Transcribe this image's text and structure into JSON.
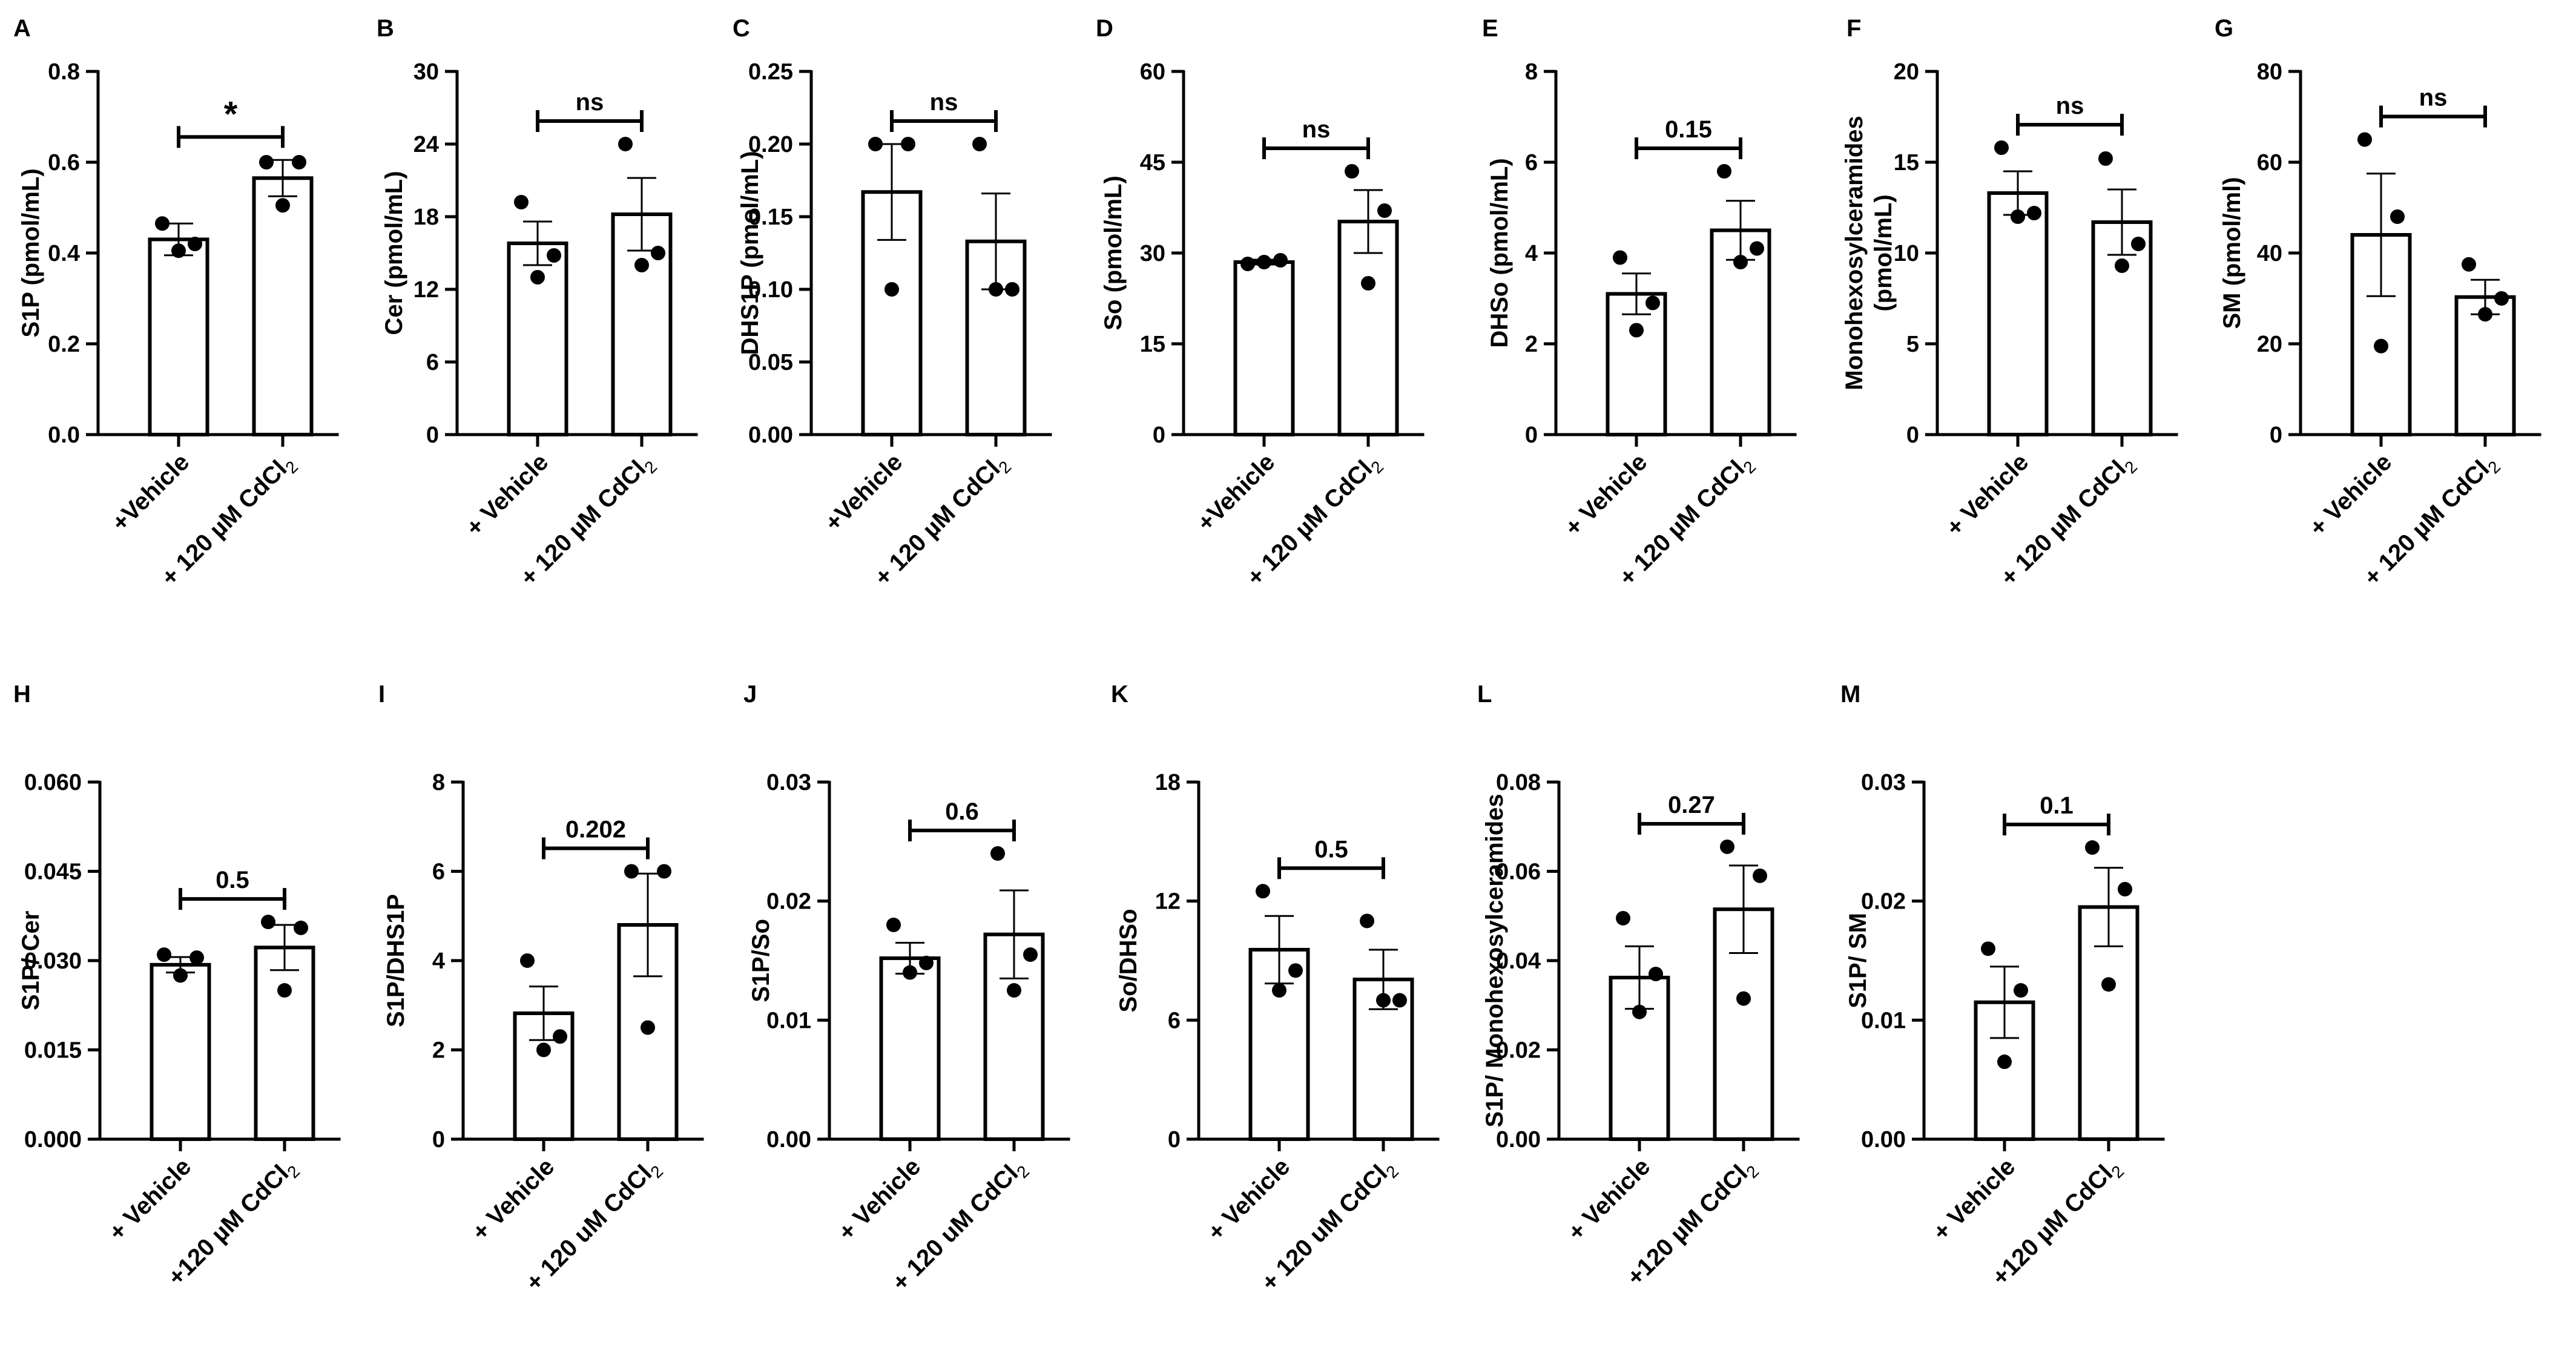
{
  "chart_data": [
    {
      "panel": "A",
      "type": "bar",
      "categories": [
        "+Vehicle",
        "+ 120 µM CdCl₂"
      ],
      "ylabel": "S1P (pmol/mL)",
      "ylim": [
        0,
        0.8
      ],
      "yticks": [
        "0.0",
        "0.2",
        "0.4",
        "0.6",
        "0.8"
      ],
      "means": [
        0.43,
        0.565
      ],
      "sem": [
        0.035,
        0.04
      ],
      "points": [
        [
          0.465,
          0.42,
          0.405
        ],
        [
          0.6,
          0.6,
          0.505
        ]
      ],
      "sig": "*"
    },
    {
      "panel": "B",
      "type": "bar",
      "categories": [
        "+ Vehicle",
        "+ 120 µM CdCl₂"
      ],
      "ylabel": "Cer (pmol/mL)",
      "ylim": [
        0,
        30
      ],
      "yticks": [
        "0",
        "6",
        "12",
        "18",
        "24",
        "30"
      ],
      "means": [
        15.8,
        18.2
      ],
      "sem": [
        1.8,
        3.0
      ],
      "points": [
        [
          19.2,
          14.8,
          13.0
        ],
        [
          24.0,
          15.0,
          14.0
        ]
      ],
      "sig": "ns"
    },
    {
      "panel": "C",
      "type": "bar",
      "categories": [
        "+Vehicle",
        "+ 120 µM CdCl₂"
      ],
      "ylabel": "DHS1P (pmol/mL)",
      "ylim": [
        0,
        0.25
      ],
      "yticks": [
        "0.00",
        "0.05",
        "0.10",
        "0.15",
        "0.20",
        "0.25"
      ],
      "means": [
        0.167,
        0.133
      ],
      "sem": [
        0.033,
        0.033
      ],
      "points": [
        [
          0.2,
          0.2,
          0.1
        ],
        [
          0.2,
          0.1,
          0.1
        ]
      ],
      "sig": "ns"
    },
    {
      "panel": "D",
      "type": "bar",
      "categories": [
        "+Vehicle",
        "+ 120 µM CdCl₂"
      ],
      "ylabel": "So (pmol/mL)",
      "ylim": [
        0,
        60
      ],
      "yticks": [
        "0",
        "15",
        "30",
        "45",
        "60"
      ],
      "means": [
        28.5,
        35.2
      ],
      "sem": [
        0.4,
        5.2
      ],
      "points": [
        [
          28.2,
          28.8,
          28.5
        ],
        [
          43.5,
          37.0,
          25.0
        ]
      ],
      "sig": "ns"
    },
    {
      "panel": "E",
      "type": "bar",
      "categories": [
        "+ Vehicle",
        "+ 120 µM CdCl₂"
      ],
      "ylabel": "DHSo (pmol/mL)",
      "ylim": [
        0,
        8
      ],
      "yticks": [
        "0",
        "2",
        "4",
        "6",
        "8"
      ],
      "means": [
        3.1,
        4.5
      ],
      "sem": [
        0.45,
        0.65
      ],
      "points": [
        [
          3.9,
          2.9,
          2.3
        ],
        [
          5.8,
          4.1,
          3.8
        ]
      ],
      "sig": "0.15"
    },
    {
      "panel": "F",
      "type": "bar",
      "categories": [
        "+ Vehicle",
        "+ 120 µM CdCl₂"
      ],
      "ylabel": "Monohexosylceramides (pmol/mL)",
      "ylim": [
        0,
        20
      ],
      "yticks": [
        "0",
        "5",
        "10",
        "15",
        "20"
      ],
      "means": [
        13.3,
        11.7
      ],
      "sem": [
        1.2,
        1.8
      ],
      "points": [
        [
          15.8,
          12.2,
          12.0
        ],
        [
          15.2,
          10.5,
          9.3
        ]
      ],
      "sig": "ns"
    },
    {
      "panel": "G",
      "type": "bar",
      "categories": [
        "+ Vehicle",
        "+ 120 µM CdCl₂"
      ],
      "ylabel": "SM (pmol/ml)",
      "ylim": [
        0,
        80
      ],
      "yticks": [
        "0",
        "20",
        "40",
        "60",
        "80"
      ],
      "means": [
        44.0,
        30.3
      ],
      "sem": [
        13.5,
        3.8
      ],
      "points": [
        [
          65.0,
          48.0,
          19.5
        ],
        [
          37.5,
          30.0,
          26.5
        ]
      ],
      "sig": "ns"
    },
    {
      "panel": "H",
      "type": "bar",
      "categories": [
        "+ Vehicle",
        "+120 µM CdCl₂"
      ],
      "ylabel": "S1P/ Cer",
      "ylim": [
        0,
        0.06
      ],
      "yticks": [
        "0.000",
        "0.015",
        "0.030",
        "0.045",
        "0.060"
      ],
      "means": [
        0.0293,
        0.0322
      ],
      "sem": [
        0.0013,
        0.0038
      ],
      "points": [
        [
          0.031,
          0.0305,
          0.0275
        ],
        [
          0.0365,
          0.0355,
          0.025
        ]
      ],
      "sig": "0.5"
    },
    {
      "panel": "I",
      "type": "bar",
      "categories": [
        "+ Vehicle",
        "+ 120 uM CdCl₂"
      ],
      "ylabel": "S1P/DHS1P",
      "ylim": [
        0,
        8
      ],
      "yticks": [
        "0",
        "2",
        "4",
        "6",
        "8"
      ],
      "means": [
        2.82,
        4.8
      ],
      "sem": [
        0.6,
        1.15
      ],
      "points": [
        [
          4.0,
          2.3,
          2.0
        ],
        [
          6.0,
          6.0,
          2.5
        ]
      ],
      "sig": "0.202"
    },
    {
      "panel": "J",
      "type": "bar",
      "categories": [
        "+ Vehicle",
        "+ 120 uM CdCl₂"
      ],
      "ylabel": "S1P/So",
      "ylim": [
        0,
        0.03
      ],
      "yticks": [
        "0.00",
        "0.01",
        "0.02",
        "0.03"
      ],
      "means": [
        0.0152,
        0.0172
      ],
      "sem": [
        0.0013,
        0.0037
      ],
      "points": [
        [
          0.018,
          0.0148,
          0.014
        ],
        [
          0.024,
          0.0155,
          0.0125
        ]
      ],
      "sig": "0.6"
    },
    {
      "panel": "K",
      "type": "bar",
      "categories": [
        "+ Vehicle",
        "+ 120 uM CdCl₂"
      ],
      "ylabel": "So/DHSo",
      "ylim": [
        0,
        18
      ],
      "yticks": [
        "0",
        "6",
        "12",
        "18"
      ],
      "means": [
        9.55,
        8.05
      ],
      "sem": [
        1.7,
        1.5
      ],
      "points": [
        [
          12.5,
          8.5,
          7.5
        ],
        [
          11.0,
          7.0,
          7.0
        ]
      ],
      "sig": "0.5"
    },
    {
      "panel": "L",
      "type": "bar",
      "categories": [
        "+ Vehicle",
        "+120 µM CdCl₂"
      ],
      "ylabel": "S1P/ Monohexosylceramides",
      "ylim": [
        0,
        0.08
      ],
      "yticks": [
        "0.00",
        "0.02",
        "0.04",
        "0.06",
        "0.08"
      ],
      "means": [
        0.0362,
        0.0515
      ],
      "sem": [
        0.007,
        0.0098
      ],
      "points": [
        [
          0.0495,
          0.037,
          0.0285
        ],
        [
          0.0655,
          0.059,
          0.0315
        ]
      ],
      "sig": "0.27"
    },
    {
      "panel": "M",
      "type": "bar",
      "categories": [
        "+ Vehicle",
        "+120 µM CdCl₂"
      ],
      "ylabel": "S1P/ SM",
      "ylim": [
        0,
        0.03
      ],
      "yticks": [
        "0.00",
        "0.01",
        "0.02",
        "0.03"
      ],
      "means": [
        0.0115,
        0.0195
      ],
      "sem": [
        0.003,
        0.0033
      ],
      "points": [
        [
          0.016,
          0.0125,
          0.0065
        ],
        [
          0.0245,
          0.021,
          0.013
        ]
      ],
      "sig": "0.1"
    }
  ]
}
